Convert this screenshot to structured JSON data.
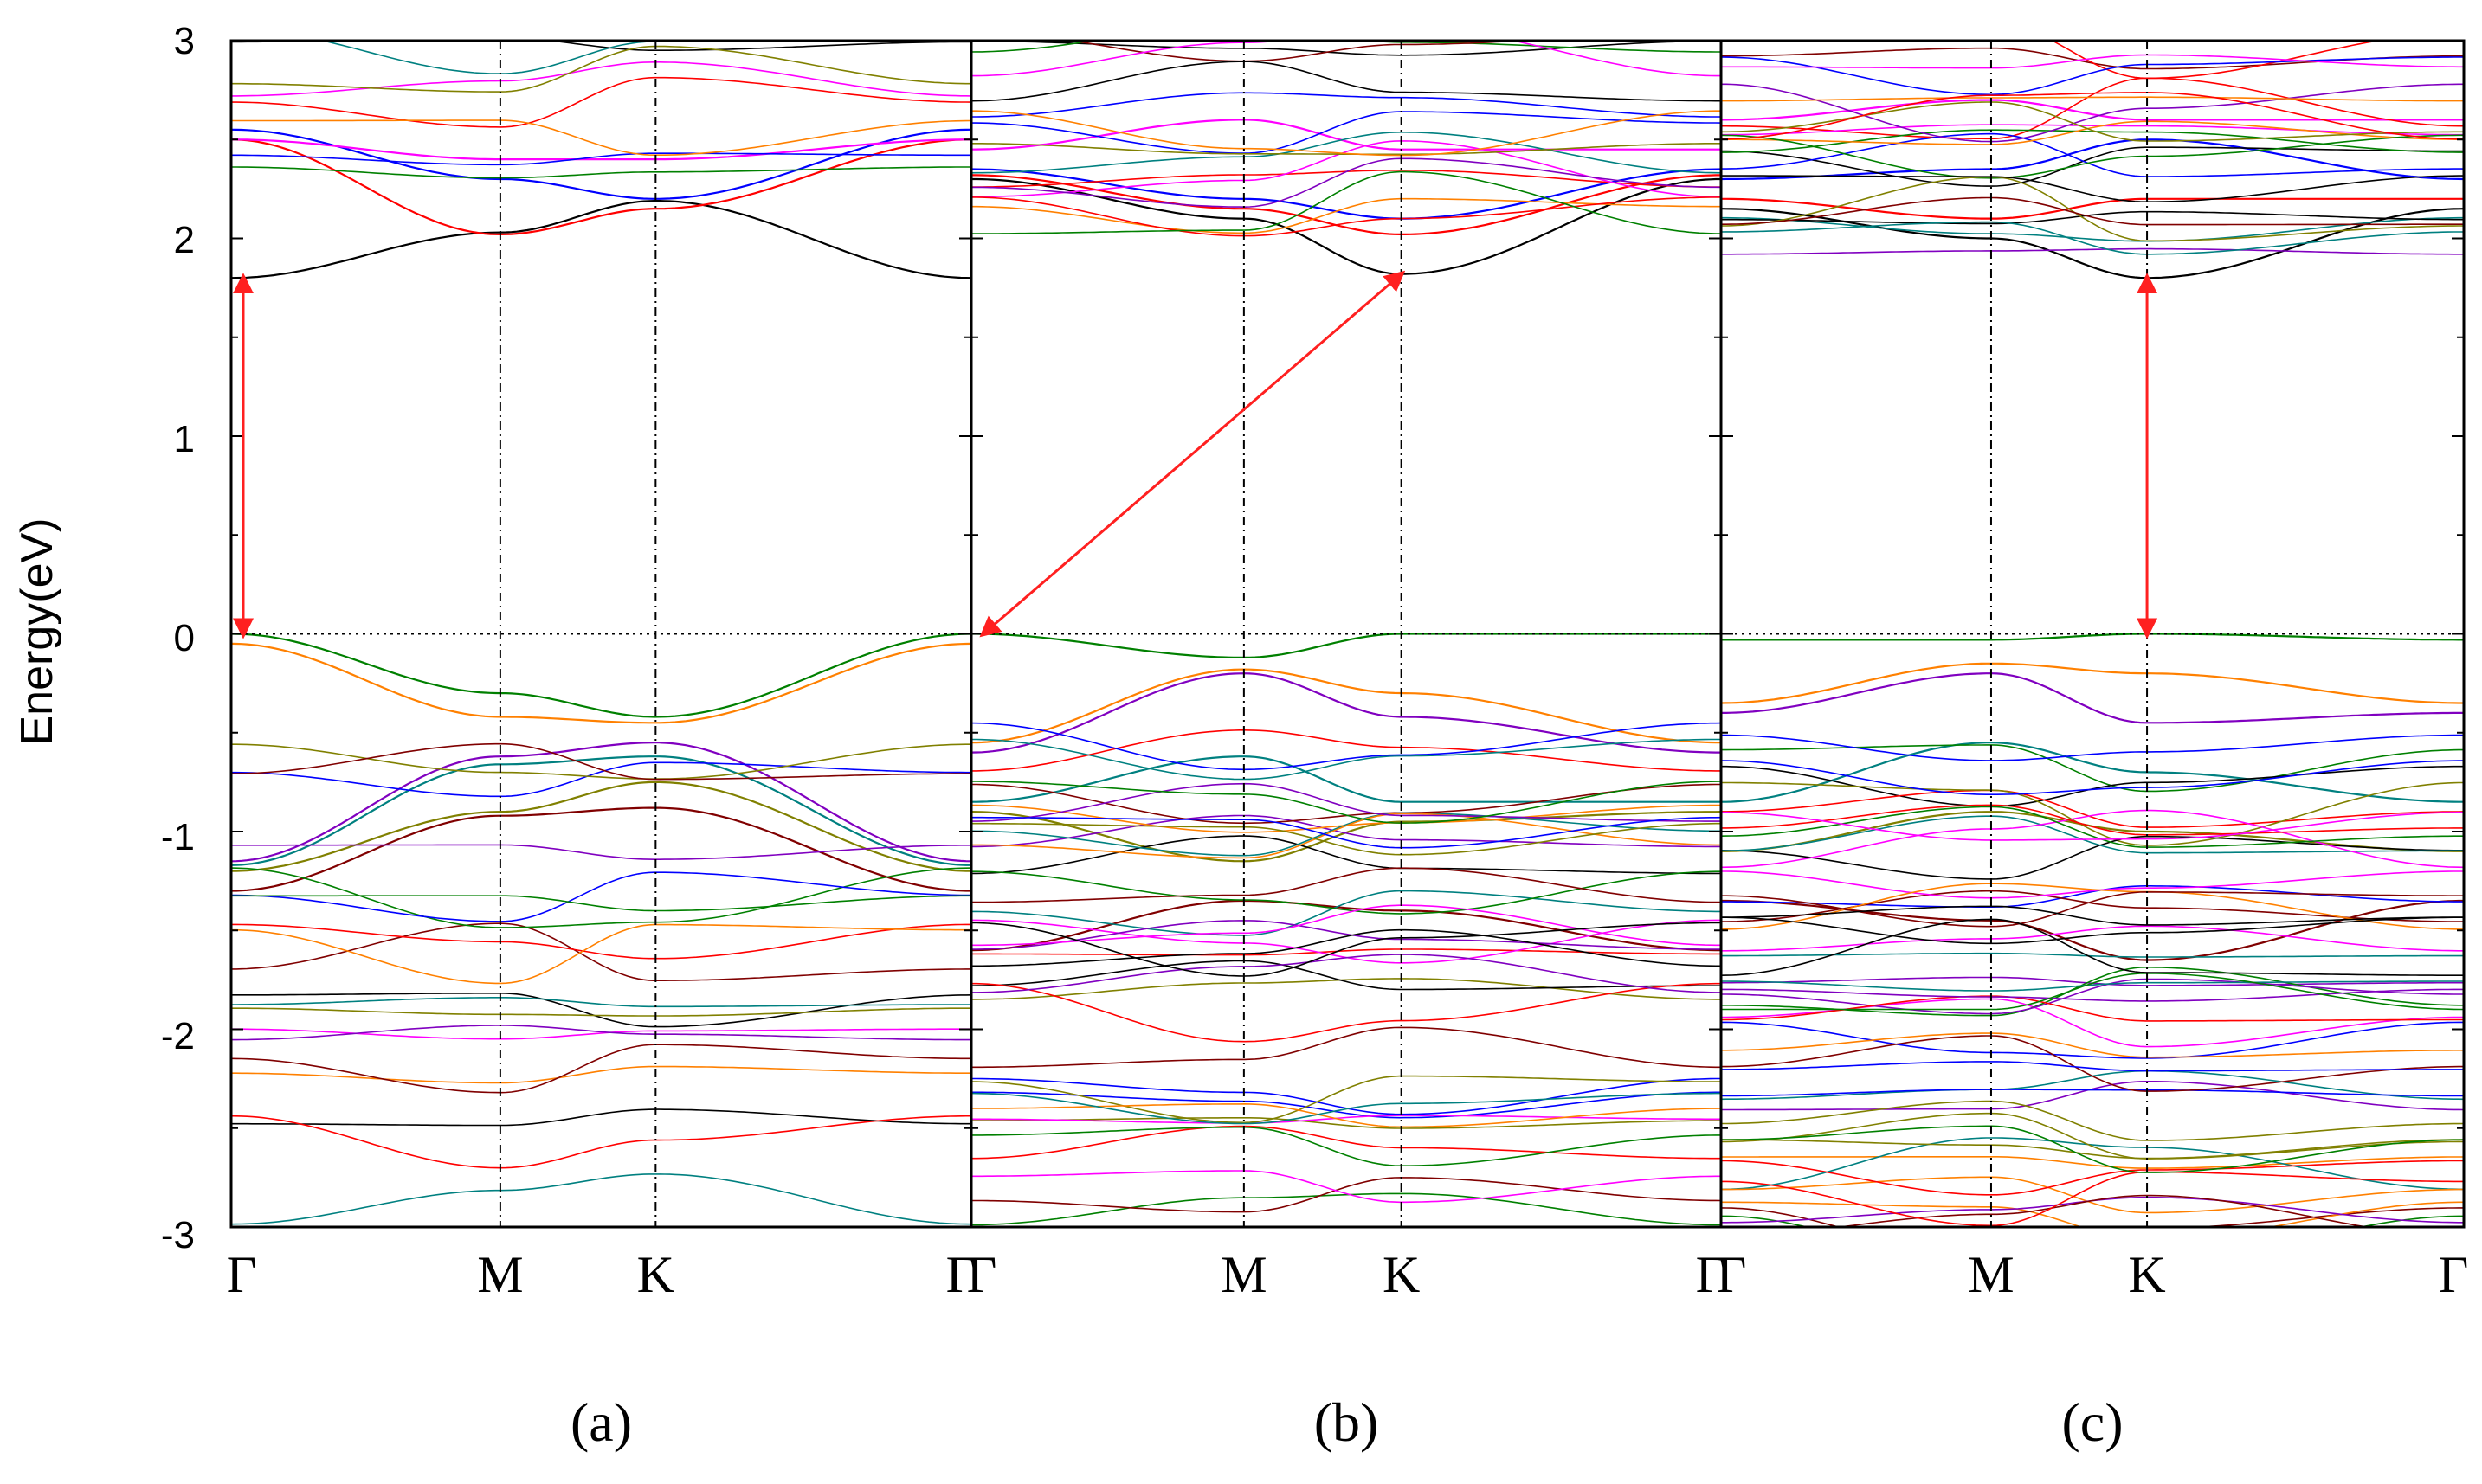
{
  "figure": {
    "y_axis_title": "Energy(eV)",
    "y_ticks": [
      3,
      2,
      1,
      0,
      -1,
      -2,
      -3
    ],
    "y_tick_labels": [
      "3",
      "2",
      "1",
      "0",
      "-1",
      "-2",
      "-3"
    ],
    "ylim": [
      -3,
      3
    ],
    "fermi_level": 0
  },
  "colors": {
    "arrow": "#ff2020",
    "axis": "#000000",
    "band_palette": [
      "#000000",
      "#ff0000",
      "#0000ff",
      "#ff00ff",
      "#008000",
      "#ff8000",
      "#8000c0",
      "#008080",
      "#808000",
      "#800000"
    ]
  },
  "chart_data": [
    {
      "type": "line",
      "panel_label": "(a)",
      "xlabel": "",
      "ylabel": "Energy(eV)",
      "ylim": [
        -3,
        3
      ],
      "kpoints": [
        "Γ",
        "M",
        "K",
        "Γ"
      ],
      "kpoint_positions": [
        0,
        0.3636,
        0.5735,
        1.0
      ],
      "vbm": {
        "k": "Γ",
        "energy": 0.0
      },
      "cbm": {
        "k": "Γ",
        "energy": 1.8
      },
      "gap_type": "direct",
      "band_gap_ev": 1.8,
      "representative_bands": [
        {
          "name": "CB1",
          "energies": [
            1.8,
            2.03,
            2.19,
            1.8
          ]
        },
        {
          "name": "CB2",
          "energies": [
            2.5,
            2.02,
            2.15,
            2.5
          ]
        },
        {
          "name": "CB3",
          "energies": [
            2.55,
            2.3,
            2.2,
            2.55
          ]
        },
        {
          "name": "CB4",
          "energies": [
            2.5,
            2.4,
            2.4,
            2.5
          ]
        },
        {
          "name": "VB1",
          "energies": [
            0.0,
            -0.3,
            -0.42,
            0.0
          ]
        },
        {
          "name": "VB2",
          "energies": [
            -0.05,
            -0.42,
            -0.45,
            -0.05
          ]
        },
        {
          "name": "VB3",
          "energies": [
            -1.15,
            -0.62,
            -0.55,
            -1.15
          ]
        },
        {
          "name": "VB4",
          "energies": [
            -1.17,
            -0.66,
            -0.62,
            -1.17
          ]
        },
        {
          "name": "VB5",
          "energies": [
            -1.2,
            -0.9,
            -0.75,
            -1.2
          ]
        },
        {
          "name": "VB6",
          "energies": [
            -1.3,
            -0.92,
            -0.88,
            -1.3
          ]
        }
      ]
    },
    {
      "type": "line",
      "panel_label": "(b)",
      "xlabel": "",
      "ylabel": "",
      "ylim": [
        -3,
        3
      ],
      "kpoints": [
        "Γ",
        "M",
        "K",
        "Γ"
      ],
      "kpoint_positions": [
        0,
        0.3636,
        0.5735,
        1.0
      ],
      "vbm": {
        "k": "Γ",
        "energy": 0.0
      },
      "cbm": {
        "k": "K",
        "energy": 1.82
      },
      "gap_type": "indirect",
      "band_gap_ev": 1.82,
      "representative_bands": [
        {
          "name": "CB1",
          "energies": [
            2.3,
            2.1,
            1.82,
            2.3
          ]
        },
        {
          "name": "CB2",
          "energies": [
            2.32,
            2.15,
            2.02,
            2.32
          ]
        },
        {
          "name": "CB3",
          "energies": [
            2.35,
            2.2,
            2.1,
            2.35
          ]
        },
        {
          "name": "CB4",
          "energies": [
            2.45,
            2.6,
            2.45,
            2.45
          ]
        },
        {
          "name": "VB1",
          "energies": [
            0.0,
            -0.12,
            0.0,
            0.0
          ]
        },
        {
          "name": "VB2",
          "energies": [
            -0.55,
            -0.18,
            -0.3,
            -0.55
          ]
        },
        {
          "name": "VB3",
          "energies": [
            -0.6,
            -0.2,
            -0.42,
            -0.6
          ]
        },
        {
          "name": "VB4",
          "energies": [
            -0.85,
            -0.62,
            -0.85,
            -0.85
          ]
        },
        {
          "name": "VB5",
          "energies": [
            -0.9,
            -1.15,
            -0.95,
            -0.9
          ]
        },
        {
          "name": "VB6",
          "energies": [
            -1.6,
            -1.35,
            -1.4,
            -1.6
          ]
        }
      ]
    },
    {
      "type": "line",
      "panel_label": "(c)",
      "xlabel": "",
      "ylabel": "",
      "ylim": [
        -3,
        3
      ],
      "kpoints": [
        "Γ",
        "M",
        "K",
        "Γ"
      ],
      "kpoint_positions": [
        0,
        0.3636,
        0.5735,
        1.0
      ],
      "vbm": {
        "k": "K",
        "energy": 0.0
      },
      "cbm": {
        "k": "K",
        "energy": 1.8
      },
      "gap_type": "direct",
      "band_gap_ev": 1.8,
      "representative_bands": [
        {
          "name": "CB1",
          "energies": [
            2.15,
            2.0,
            1.8,
            2.15
          ]
        },
        {
          "name": "CB2",
          "energies": [
            2.2,
            2.1,
            2.2,
            2.2
          ]
        },
        {
          "name": "CB3",
          "energies": [
            2.3,
            2.35,
            2.5,
            2.3
          ]
        },
        {
          "name": "CB4",
          "energies": [
            2.6,
            2.7,
            2.6,
            2.6
          ]
        },
        {
          "name": "VB1",
          "energies": [
            -0.03,
            -0.03,
            0.0,
            -0.03
          ]
        },
        {
          "name": "VB2",
          "energies": [
            -0.35,
            -0.15,
            -0.2,
            -0.35
          ]
        },
        {
          "name": "VB3",
          "energies": [
            -0.4,
            -0.2,
            -0.45,
            -0.4
          ]
        },
        {
          "name": "VB4",
          "energies": [
            -0.85,
            -0.55,
            -0.7,
            -0.85
          ]
        },
        {
          "name": "VB5",
          "energies": [
            -1.1,
            -0.9,
            -1.0,
            -1.1
          ]
        },
        {
          "name": "VB6",
          "energies": [
            -1.35,
            -1.45,
            -1.65,
            -1.35
          ]
        }
      ]
    }
  ]
}
